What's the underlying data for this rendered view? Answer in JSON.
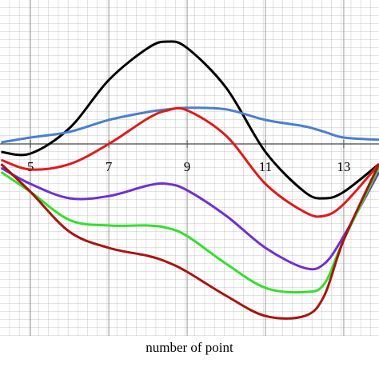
{
  "chart_data": {
    "type": "line",
    "x_label": "number of point",
    "x": [
      4.25,
      5,
      6,
      7,
      8,
      8.5,
      9,
      10,
      11,
      12,
      12.5,
      13,
      13.9
    ],
    "xlim": [
      4.22,
      13.9
    ],
    "xticks": [
      5,
      7,
      9,
      11,
      13
    ],
    "ylim": [
      -6,
      4.5
    ],
    "grid": true,
    "series": [
      {
        "color": "#000000",
        "values": [
          -0.25,
          -0.3,
          0.5,
          2,
          3,
          3.2,
          3,
          1.75,
          -0.25,
          -1.5,
          -1.7,
          -1.5,
          -0.63
        ]
      },
      {
        "color": "#4a7fcf",
        "values": [
          0.05,
          0.2,
          0.38,
          0.75,
          1,
          1.08,
          1.13,
          1.08,
          0.75,
          0.55,
          0.38,
          0.2,
          0.13
        ]
      },
      {
        "color": "#e01a1a",
        "values": [
          -0.5,
          -0.8,
          -0.63,
          0,
          0.8,
          1.05,
          1.05,
          0.25,
          -1.25,
          -2.13,
          -2.25,
          -1.88,
          -0.63
        ]
      },
      {
        "color": "#7030d0",
        "values": [
          -0.75,
          -1.25,
          -1.7,
          -1.63,
          -1.3,
          -1.25,
          -1.45,
          -2.25,
          -3.25,
          -3.88,
          -3.75,
          -2.88,
          -0.88
        ]
      },
      {
        "color": "#33e02a",
        "values": [
          -0.88,
          -1.5,
          -2.38,
          -2.55,
          -2.55,
          -2.63,
          -2.88,
          -3.75,
          -4.5,
          -4.63,
          -4.38,
          -3,
          -0.75
        ]
      },
      {
        "color": "#a8140f",
        "values": [
          -0.63,
          -1.5,
          -2.75,
          -3.25,
          -3.5,
          -3.7,
          -4,
          -4.75,
          -5.38,
          -5.38,
          -4.75,
          -3,
          -0.63
        ]
      }
    ]
  }
}
